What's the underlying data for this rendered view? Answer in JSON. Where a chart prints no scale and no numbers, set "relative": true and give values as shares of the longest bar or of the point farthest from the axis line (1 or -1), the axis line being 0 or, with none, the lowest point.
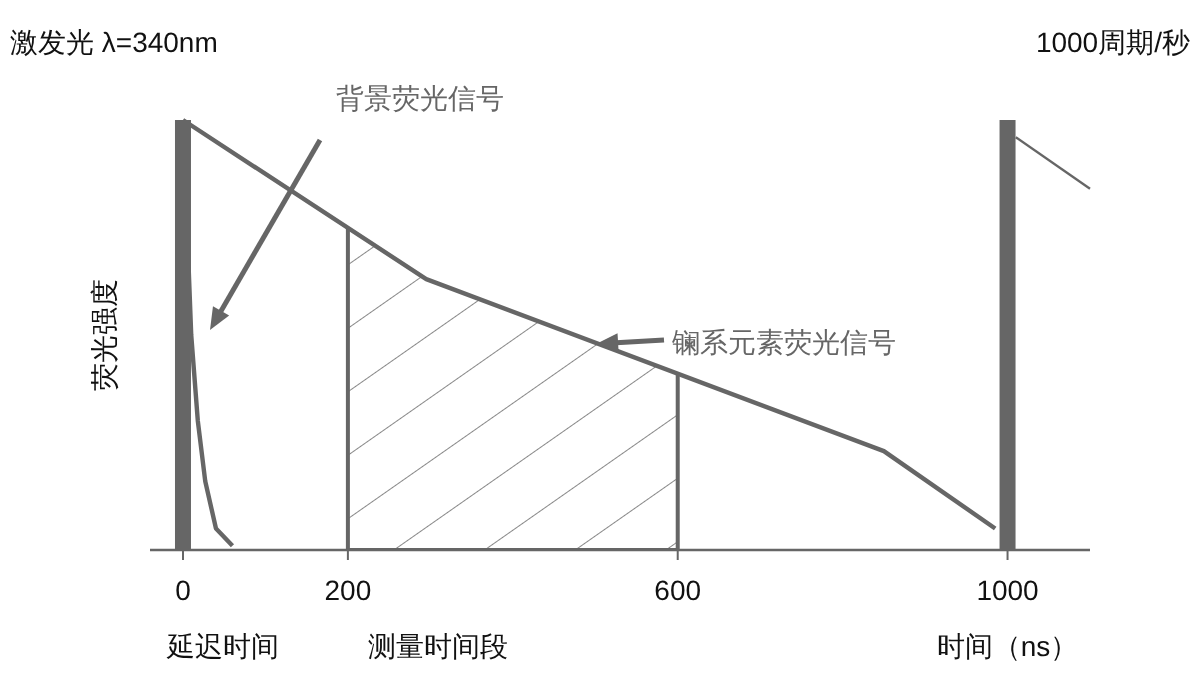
{
  "chart_data": {
    "type": "line",
    "ylabel": "荧光强度",
    "xlabel": "时间（ns）",
    "relative": true,
    "xlim": [
      -40,
      1100
    ],
    "xticks": [
      0,
      200,
      600,
      1000
    ],
    "tick_labels": "x",
    "marker": "none",
    "line_style": "solid",
    "series": [
      {
        "name": "背景荧光信号",
        "color": "#666666",
        "x": [
          0,
          5,
          10,
          18,
          27,
          40,
          60
        ],
        "values": [
          1,
          0.75,
          0.5,
          0.3,
          0.16,
          0.05,
          0.01
        ]
      },
      {
        "name": "镧系元素荧光信号",
        "color": "#666666",
        "x": [
          0,
          295,
          850,
          985
        ],
        "values": [
          1,
          0.63,
          0.23,
          0.05
        ]
      },
      {
        "color": "#666666",
        "x": [
          1010,
          1100
        ],
        "values": [
          0.96,
          0.84
        ]
      }
    ],
    "ref_lines": [
      {
        "axis": "x",
        "value": 0,
        "color": "#666666"
      },
      {
        "axis": "x",
        "value": 1000,
        "color": "#666666"
      }
    ],
    "bands": [
      {
        "axis": "x",
        "from": 200,
        "to": 600,
        "label": "测量时间段"
      }
    ],
    "annotations": [
      "延迟时间",
      "激发光 λ=340nm",
      "1000周期/秒"
    ]
  }
}
